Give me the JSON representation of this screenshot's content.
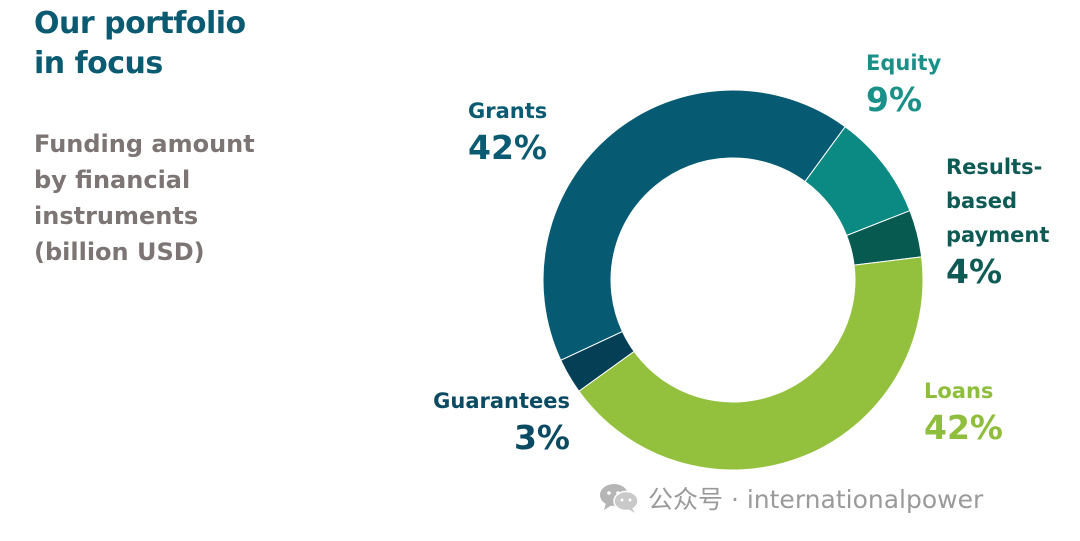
{
  "header": {
    "title_line1": "Our portfolio",
    "title_line2": "in focus",
    "subtitle_lines": [
      "Funding amount",
      "by financial",
      "instruments",
      "(billion USD)"
    ]
  },
  "watermark": {
    "icon": "wechat-icon",
    "text": "公众号 · internationalpower"
  },
  "chart_data": {
    "type": "pie",
    "donut": true,
    "categories": [
      "Grants",
      "Equity",
      "Results-based payment",
      "Loans",
      "Guarantees"
    ],
    "values": [
      42,
      9,
      4,
      42,
      3
    ],
    "value_labels": [
      "42%",
      "9%",
      "4%",
      "42%",
      "3%"
    ],
    "label_lines": [
      [
        "Grants"
      ],
      [
        "Equity"
      ],
      [
        "Results-",
        "based",
        "payment"
      ],
      [
        "Loans"
      ],
      [
        "Guarantees"
      ]
    ],
    "colors": [
      "#065a72",
      "#0a8a82",
      "#065a50",
      "#93c13e",
      "#053f56"
    ],
    "start_angle_deg": -115,
    "direction": "clockwise"
  }
}
